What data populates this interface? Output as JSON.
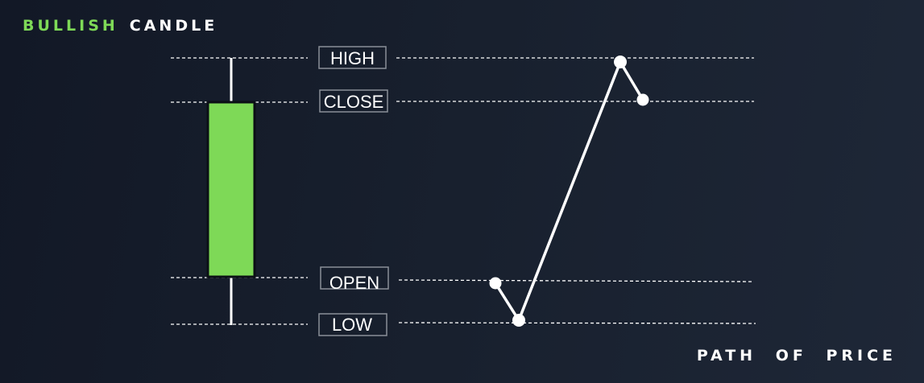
{
  "title": {
    "word1": "BULLISH",
    "word2": "CANDLE"
  },
  "footer": "PATH OF PRICE",
  "levels": {
    "high": "HIGH",
    "close": "CLOSE",
    "open": "OPEN",
    "low": "LOW"
  },
  "colors": {
    "bullish": "#7ed957",
    "line": "#ffffff",
    "label_border": "#8a8f98"
  },
  "price_path": [
    "OPEN",
    "LOW",
    "HIGH",
    "CLOSE"
  ]
}
